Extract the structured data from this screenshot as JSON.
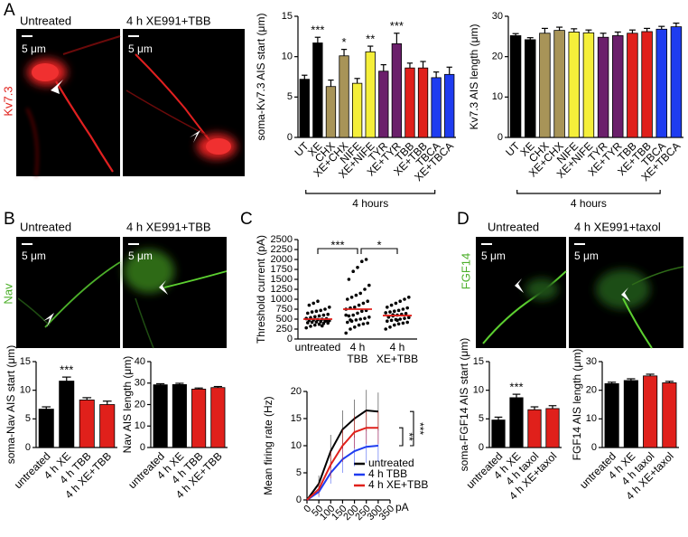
{
  "figure": {
    "panels": [
      {
        "label": "A",
        "stain": "Kv7.3",
        "images": [
          {
            "title": "Untreated",
            "scale_bar": "5 μm"
          },
          {
            "title": "4 h XE991+TBB",
            "scale_bar": "5 μm"
          }
        ]
      },
      {
        "label": "B",
        "stain": "Nav",
        "images": [
          {
            "title": "Untreated",
            "scale_bar": "5 μm"
          },
          {
            "title": "4 h XE991+TBB",
            "scale_bar": "5 μm"
          }
        ]
      },
      {
        "label": "C"
      },
      {
        "label": "D",
        "stain": "FGF14",
        "images": [
          {
            "title": "Untreated",
            "scale_bar": "5 μm"
          },
          {
            "title": "4 h XE991+taxol",
            "scale_bar": "5 μm"
          }
        ]
      }
    ]
  },
  "chart_data": [
    {
      "type": "bar",
      "ylabel": "soma-Kv7.3 AIS start (μm)",
      "categories": [
        "UT",
        "XE",
        "CHX",
        "XE+CHX",
        "NIFE",
        "XE+NIFE",
        "TYR",
        "XE+TYR",
        "TBB",
        "XE+TBB",
        "TBCA",
        "XE+TBCA"
      ],
      "values": [
        7.2,
        11.7,
        6.3,
        10.1,
        6.7,
        10.6,
        8.2,
        11.6,
        8.6,
        8.6,
        7.4,
        7.8
      ],
      "errors": [
        0.5,
        0.7,
        0.8,
        0.8,
        0.6,
        0.7,
        0.8,
        1.3,
        0.6,
        0.8,
        0.7,
        0.9
      ],
      "colors": [
        "#000000",
        "#000000",
        "#a89458",
        "#a89458",
        "#f5ef3a",
        "#f5ef3a",
        "#6b1f6b",
        "#6b1f6b",
        "#e0201b",
        "#e0201b",
        "#1f3cf0",
        "#1f3cf0"
      ],
      "significance": [
        null,
        "***",
        null,
        "*",
        null,
        "**",
        null,
        "***",
        null,
        null,
        null,
        null
      ],
      "bracket_label": "4 hours",
      "ylim": [
        0,
        15
      ],
      "yticks": [
        0,
        5,
        10,
        15
      ]
    },
    {
      "type": "bar",
      "ylabel": "Kv7.3 AIS length (μm)",
      "categories": [
        "UT",
        "XE",
        "CHX",
        "XE+CHX",
        "NIFE",
        "XE+NIFE",
        "TYR",
        "XE+TYR",
        "TBB",
        "XE+TBB",
        "TBCA",
        "XE+TBCA"
      ],
      "values": [
        25.2,
        24.2,
        25.8,
        26.5,
        26.1,
        25.9,
        24.8,
        25.2,
        25.8,
        26.2,
        26.8,
        27.4
      ],
      "errors": [
        0.5,
        0.5,
        1.2,
        0.8,
        0.8,
        0.7,
        1.0,
        0.9,
        0.8,
        0.8,
        0.7,
        0.9
      ],
      "colors": [
        "#000000",
        "#000000",
        "#a89458",
        "#a89458",
        "#f5ef3a",
        "#f5ef3a",
        "#6b1f6b",
        "#6b1f6b",
        "#e0201b",
        "#e0201b",
        "#1f3cf0",
        "#1f3cf0"
      ],
      "bracket_label": "4 hours",
      "ylim": [
        0,
        30
      ],
      "yticks": [
        0,
        10,
        20,
        30
      ]
    },
    {
      "type": "bar",
      "ylabel": "soma-Nav AIS start (μm)",
      "categories": [
        "untreated",
        "4 h XE",
        "4 h TBB",
        "4 h XE+TBB"
      ],
      "values": [
        6.7,
        11.6,
        8.3,
        7.5
      ],
      "errors": [
        0.4,
        0.7,
        0.4,
        0.6
      ],
      "colors": [
        "#000000",
        "#000000",
        "#e0201b",
        "#e0201b"
      ],
      "significance": [
        null,
        "***",
        null,
        null
      ],
      "ylim": [
        0,
        15
      ],
      "yticks": [
        0,
        5,
        10,
        15
      ]
    },
    {
      "type": "bar",
      "ylabel": "Nav AIS length (μm)",
      "categories": [
        "untreated",
        "4 h XE",
        "4 h TBB",
        "4 h XE+TBB"
      ],
      "values": [
        29.2,
        29.3,
        27.2,
        27.9
      ],
      "errors": [
        0.5,
        0.6,
        0.5,
        0.5
      ],
      "colors": [
        "#000000",
        "#000000",
        "#e0201b",
        "#e0201b"
      ],
      "ylim": [
        0,
        40
      ],
      "yticks": [
        0,
        10,
        20,
        30,
        40
      ]
    },
    {
      "type": "strip",
      "ylabel": "Threshold current (pA)",
      "categories": [
        "untreated",
        "4 h\nTBB",
        "4 h\nXE+TBB"
      ],
      "groups": [
        [
          280,
          320,
          350,
          370,
          390,
          400,
          410,
          420,
          430,
          440,
          450,
          460,
          470,
          480,
          490,
          500,
          510,
          520,
          540,
          560,
          580,
          600,
          620,
          650,
          680,
          700,
          720,
          750,
          800,
          850,
          900,
          950,
          330,
          460,
          510
        ],
        [
          150,
          250,
          300,
          350,
          380,
          400,
          420,
          450,
          480,
          500,
          520,
          550,
          580,
          600,
          650,
          700,
          720,
          750,
          780,
          800,
          850,
          900,
          950,
          1000,
          1050,
          1100,
          1150,
          1250,
          1350,
          1500,
          1700,
          1800,
          1950,
          2000,
          600,
          480
        ],
        [
          250,
          300,
          350,
          380,
          400,
          420,
          450,
          470,
          490,
          500,
          520,
          540,
          560,
          580,
          600,
          620,
          640,
          660,
          680,
          700,
          720,
          750,
          780,
          800,
          850,
          900,
          950,
          1000,
          1050,
          550,
          610,
          470
        ]
      ],
      "means": [
        500,
        750,
        590
      ],
      "point_color": "#000000",
      "mean_color": "#e0201b",
      "comparisons": [
        "***",
        "*"
      ],
      "ylim": [
        0,
        2500
      ],
      "yticks": [
        0,
        250,
        500,
        750,
        1000,
        1250,
        1500,
        1750,
        2000,
        2250,
        2500
      ]
    },
    {
      "type": "line",
      "ylabel": "Mean firing rate (Hz)",
      "xlabel": "pA",
      "x": [
        0,
        50,
        100,
        150,
        200,
        250,
        300
      ],
      "series": [
        {
          "name": "untreated",
          "color": "#000000",
          "values": [
            0,
            3,
            9,
            13,
            15,
            16.5,
            16.3
          ],
          "errors": [
            0,
            1.5,
            3,
            3.5,
            3.5,
            3.8,
            3.5
          ]
        },
        {
          "name": "4 h TBB",
          "color": "#1f3cf0",
          "values": [
            0,
            1.5,
            5,
            7.5,
            9,
            9.8,
            10
          ],
          "errors": [
            0,
            1,
            2,
            2.5,
            2.8,
            3,
            3
          ]
        },
        {
          "name": "4 h XE+TBB",
          "color": "#e0201b",
          "values": [
            0,
            2,
            6.5,
            10,
            12.5,
            13.3,
            13.3
          ],
          "errors": [
            0,
            1.2,
            2.5,
            3,
            3,
            3,
            3
          ]
        }
      ],
      "comparisons": [
        "**",
        "***"
      ],
      "xlim": [
        0,
        350
      ],
      "xticks": [
        0,
        50,
        100,
        150,
        200,
        250,
        300,
        350
      ],
      "ylim": [
        0,
        20
      ],
      "yticks": [
        0,
        5,
        10,
        15,
        20
      ]
    },
    {
      "type": "bar",
      "ylabel": "soma-FGF14 AIS start (μm)",
      "categories": [
        "untreated",
        "4 h XE",
        "4 h taxol",
        "4 h XE+taxol"
      ],
      "values": [
        4.8,
        8.7,
        6.6,
        6.8
      ],
      "errors": [
        0.5,
        0.6,
        0.5,
        0.5
      ],
      "colors": [
        "#000000",
        "#000000",
        "#e0201b",
        "#e0201b"
      ],
      "significance": [
        null,
        "***",
        null,
        null
      ],
      "ylim": [
        0,
        15
      ],
      "yticks": [
        0,
        5,
        10,
        15
      ]
    },
    {
      "type": "bar",
      "ylabel": "FGF14 AIS length (μm)",
      "categories": [
        "untreated",
        "4 h XE",
        "4 h taxol",
        "4 h XE+taxol"
      ],
      "values": [
        22.3,
        23.4,
        25.0,
        22.6
      ],
      "errors": [
        0.5,
        0.6,
        0.6,
        0.5
      ],
      "colors": [
        "#000000",
        "#000000",
        "#e0201b",
        "#e0201b"
      ],
      "ylim": [
        0,
        30
      ],
      "yticks": [
        0,
        10,
        20,
        30
      ]
    }
  ]
}
